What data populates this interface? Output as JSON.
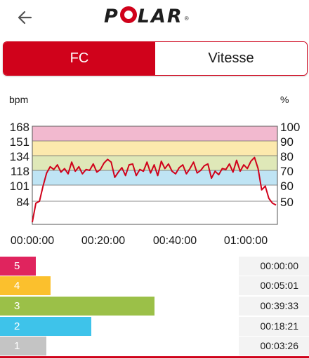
{
  "header": {
    "logo_text_1": "P",
    "logo_text_2": "LAR",
    "logo_reg": "®"
  },
  "tabs": [
    {
      "label": "FC",
      "active": true
    },
    {
      "label": "Vitesse",
      "active": false
    }
  ],
  "chart_data": {
    "type": "line",
    "ylabel_left": "bpm",
    "ylabel_right": "%",
    "y_ticks_left": [
      "168",
      "151",
      "134",
      "118",
      "101",
      "84"
    ],
    "y_ticks_right": [
      "100",
      "90",
      "80",
      "70",
      "60",
      "50"
    ],
    "x_ticks": [
      "00:00:00",
      "00:20:00",
      "00:40:00",
      "01:00:00"
    ],
    "zone_colors": [
      "#f2b9cf",
      "#fce9ad",
      "#dfe8b8",
      "#bfe4f4"
    ],
    "line_color": "#d0021b",
    "series": [
      {
        "x_min": [
          0,
          1,
          2,
          3,
          4,
          5,
          6,
          7,
          8,
          9,
          10,
          11,
          12,
          13,
          14,
          15,
          16,
          17,
          18,
          19,
          20,
          21,
          22,
          23,
          24,
          25,
          26,
          27,
          28,
          29,
          30,
          31,
          32,
          33,
          34,
          35,
          36,
          37,
          38,
          39,
          40,
          41,
          42,
          43,
          44,
          45,
          46,
          47,
          48,
          49,
          50,
          51,
          52,
          53,
          54,
          55,
          56,
          57,
          58,
          59,
          60,
          61,
          62,
          63,
          64,
          65,
          66,
          67,
          68
        ],
        "values": [
          62,
          82,
          84,
          100,
          115,
          122,
          119,
          124,
          116,
          120,
          114,
          127,
          117,
          122,
          114,
          119,
          118,
          125,
          116,
          119,
          126,
          130,
          127,
          110,
          116,
          121,
          112,
          124,
          125,
          112,
          119,
          117,
          127,
          115,
          124,
          112,
          128,
          120,
          125,
          117,
          114,
          121,
          124,
          114,
          120,
          127,
          115,
          118,
          123,
          125,
          109,
          117,
          113,
          120,
          119,
          125,
          116,
          129,
          117,
          124,
          120,
          128,
          132,
          120,
          96,
          100,
          87,
          82,
          80
        ]
      }
    ]
  },
  "zones": [
    {
      "num": "5",
      "time": "00:00:00",
      "color": "#e0245e",
      "fraction": 0.115
    },
    {
      "num": "4",
      "time": "00:05:01",
      "color": "#fbc02d",
      "fraction": 0.164
    },
    {
      "num": "3",
      "time": "00:39:33",
      "color": "#9bc048",
      "fraction": 0.5
    },
    {
      "num": "2",
      "time": "00:18:21",
      "color": "#3ec3ea",
      "fraction": 0.295
    },
    {
      "num": "1",
      "time": "00:03:26",
      "color": "#c4c4c4",
      "fraction": 0.15
    }
  ]
}
